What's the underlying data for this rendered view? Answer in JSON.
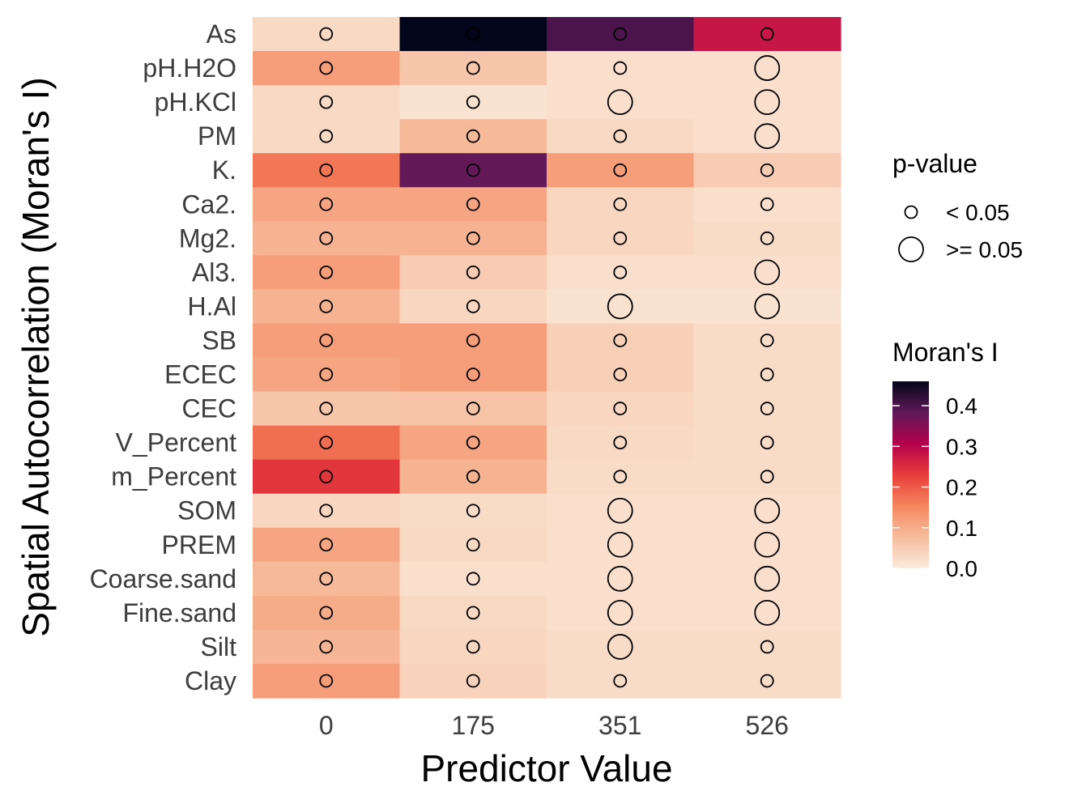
{
  "chart_data": {
    "type": "heatmap",
    "xlabel": "Predictor Value",
    "ylabel": "Spatial Autocorrelation (Moran's I)",
    "x": [
      "0",
      "175",
      "351",
      "526"
    ],
    "y": [
      "As",
      "pH.H2O",
      "pH.KCl",
      "PM",
      "K.",
      "Ca2.",
      "Mg2.",
      "Al3.",
      "H.Al",
      "SB",
      "ECEC",
      "CEC",
      "V_Percent",
      "m_Percent",
      "SOM",
      "PREM",
      "Coarse.sand",
      "Fine.sand",
      "Silt",
      "Clay"
    ],
    "moran_i": [
      [
        0.03,
        0.46,
        0.4,
        0.28
      ],
      [
        0.12,
        0.06,
        0.02,
        0.02
      ],
      [
        0.03,
        0.015,
        0.02,
        0.02
      ],
      [
        0.03,
        0.08,
        0.03,
        0.02
      ],
      [
        0.17,
        0.38,
        0.12,
        0.05
      ],
      [
        0.11,
        0.11,
        0.035,
        0.02
      ],
      [
        0.09,
        0.09,
        0.035,
        0.025
      ],
      [
        0.12,
        0.05,
        0.02,
        0.02
      ],
      [
        0.09,
        0.035,
        0.015,
        0.015
      ],
      [
        0.12,
        0.12,
        0.045,
        0.025
      ],
      [
        0.11,
        0.12,
        0.045,
        0.025
      ],
      [
        0.06,
        0.065,
        0.035,
        0.025
      ],
      [
        0.18,
        0.11,
        0.03,
        0.025
      ],
      [
        0.24,
        0.09,
        0.025,
        0.025
      ],
      [
        0.035,
        0.025,
        0.02,
        0.02
      ],
      [
        0.11,
        0.03,
        0.02,
        0.02
      ],
      [
        0.08,
        0.02,
        0.02,
        0.02
      ],
      [
        0.1,
        0.03,
        0.02,
        0.02
      ],
      [
        0.085,
        0.035,
        0.025,
        0.025
      ],
      [
        0.12,
        0.04,
        0.025,
        0.025
      ]
    ],
    "p_value_significant": [
      [
        true,
        true,
        true,
        true
      ],
      [
        true,
        true,
        true,
        false
      ],
      [
        true,
        true,
        false,
        false
      ],
      [
        true,
        true,
        true,
        false
      ],
      [
        true,
        true,
        true,
        true
      ],
      [
        true,
        true,
        true,
        true
      ],
      [
        true,
        true,
        true,
        true
      ],
      [
        true,
        true,
        true,
        false
      ],
      [
        true,
        true,
        false,
        false
      ],
      [
        true,
        true,
        true,
        true
      ],
      [
        true,
        true,
        true,
        true
      ],
      [
        true,
        true,
        true,
        true
      ],
      [
        true,
        true,
        true,
        true
      ],
      [
        true,
        true,
        true,
        true
      ],
      [
        true,
        true,
        false,
        false
      ],
      [
        true,
        true,
        false,
        false
      ],
      [
        true,
        true,
        false,
        false
      ],
      [
        true,
        true,
        false,
        false
      ],
      [
        true,
        true,
        false,
        true
      ],
      [
        true,
        true,
        true,
        true
      ]
    ],
    "legend_pvalue": {
      "title": "p-value",
      "entries": [
        "< 0.05",
        ">= 0.05"
      ]
    },
    "legend_color": {
      "title": "Moran's I",
      "ticks": [
        "0.4",
        "0.3",
        "0.2",
        "0.1",
        "0.0"
      ],
      "tick_values": [
        0.4,
        0.3,
        0.2,
        0.1,
        0.0
      ],
      "range": [
        0,
        0.46
      ]
    },
    "colorscale": [
      "#faebdd",
      "#f6bc9c",
      "#f4875e",
      "#e83e3a",
      "#b3004b",
      "#5f1a58",
      "#03051a"
    ]
  }
}
